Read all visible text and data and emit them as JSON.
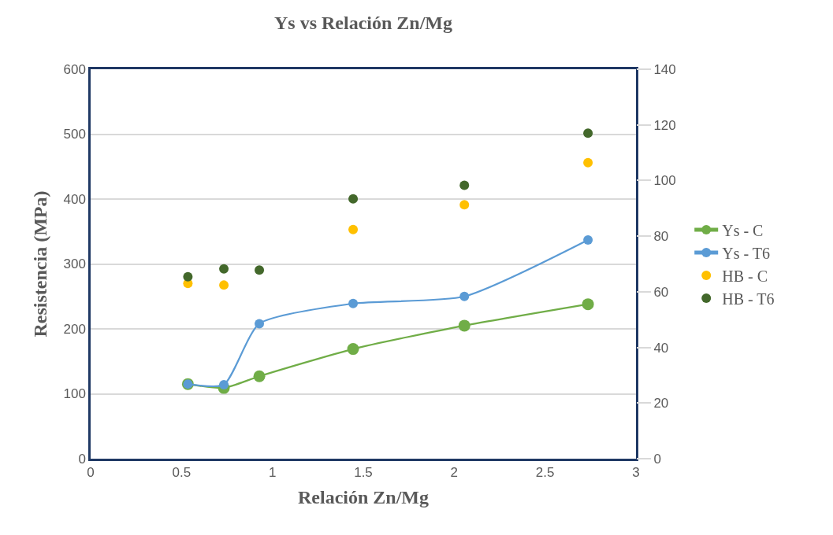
{
  "chart_data": {
    "type": "line",
    "title": "Ys vs Relación Zn/Mg",
    "xlabel": "Relación Zn/Mg",
    "ylabel": "Resistencia (MPa)",
    "x": [
      0.535,
      0.733,
      0.928,
      1.444,
      2.056,
      2.736
    ],
    "series": [
      {
        "name": "Ys - C",
        "color": "#70ad47",
        "values": [
          115,
          109,
          127,
          169,
          205,
          238
        ]
      },
      {
        "name": "Ys - T6",
        "color": "#5b9bd5",
        "values": [
          115,
          114,
          208,
          239,
          250,
          337
        ]
      },
      {
        "name": "HB - C",
        "type": "scatter",
        "axis": "y2",
        "color": "#ffc000",
        "values": [
          63,
          62.4,
          null,
          82.4,
          91.3,
          106.4
        ]
      },
      {
        "name": "HB - T6",
        "type": "scatter",
        "axis": "y2",
        "color": "#43682b",
        "values": [
          65.4,
          68.2,
          67.8,
          93.4,
          98.3,
          117
        ]
      }
    ],
    "xlim": [
      0,
      3
    ],
    "xticks": [
      0,
      0.5,
      1,
      1.5,
      2,
      2.5,
      3
    ],
    "ylim": [
      0,
      600
    ],
    "yticks": [
      0,
      100,
      200,
      300,
      400,
      500,
      600
    ],
    "y2lim": [
      0,
      140
    ],
    "y2ticks": [
      0,
      20,
      40,
      60,
      80,
      100,
      120,
      140
    ],
    "grid": "y",
    "legend": "right",
    "marker": "circle",
    "line_style": "solid"
  }
}
